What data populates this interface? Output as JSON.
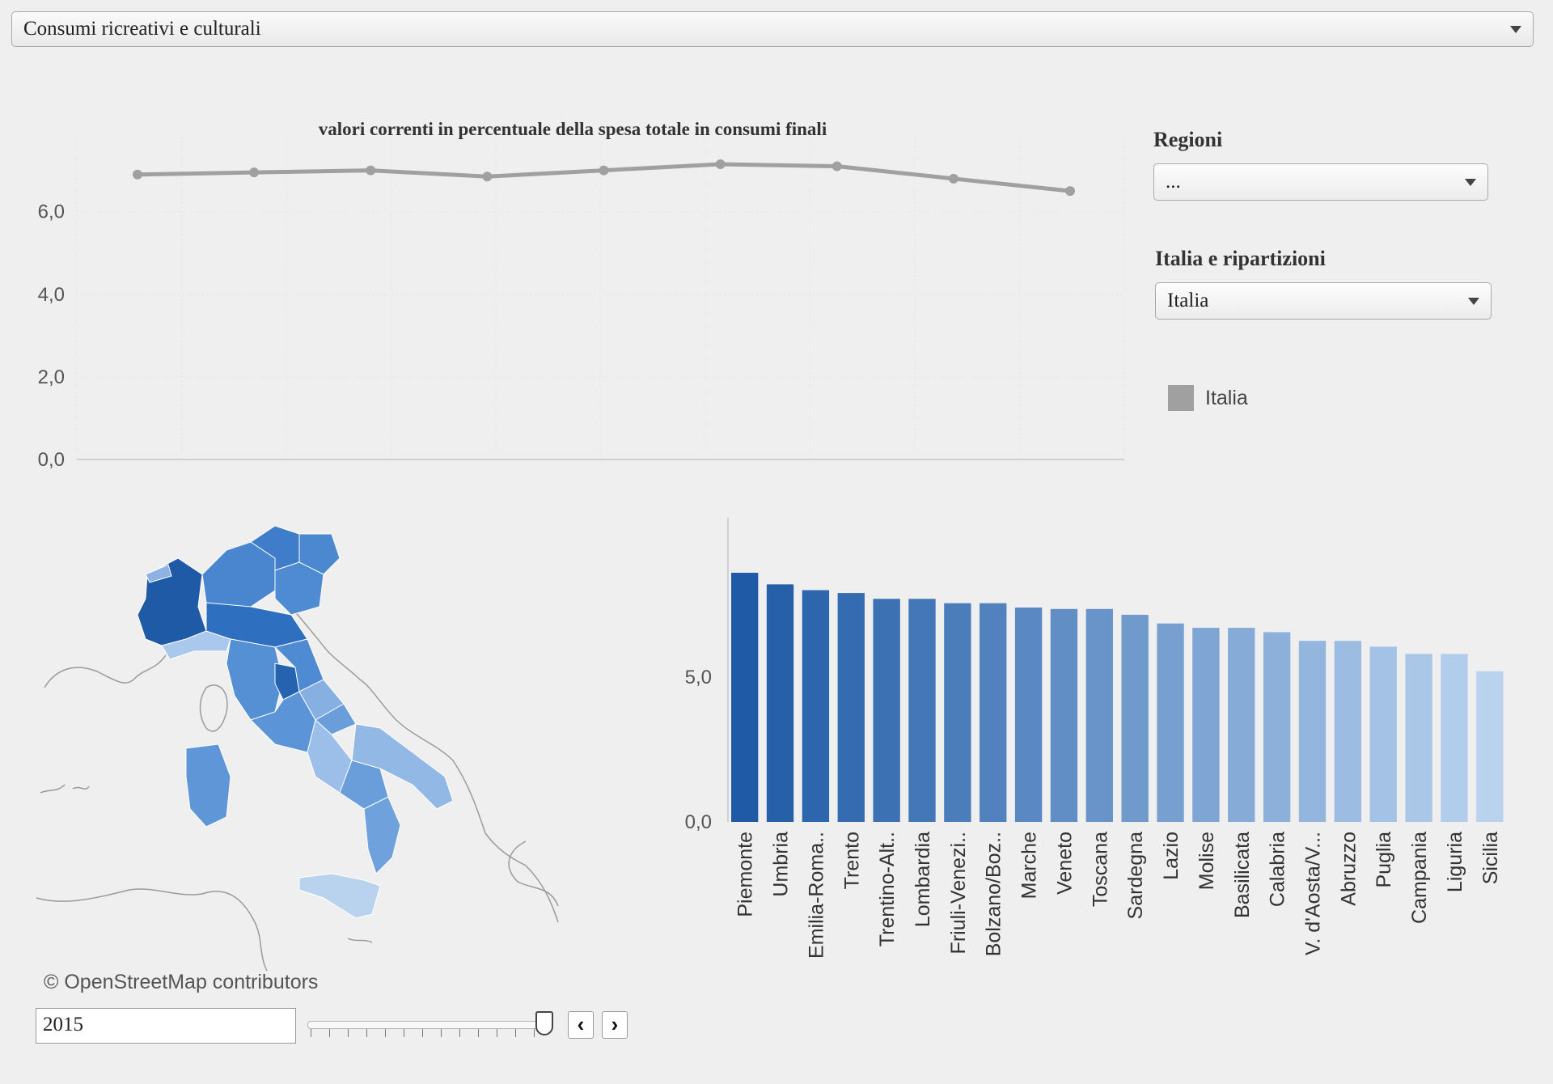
{
  "indicator_select": {
    "value": "Consumi ricreativi e culturali"
  },
  "filters": {
    "regioni": {
      "title": "Regioni",
      "value": "..."
    },
    "ripartizioni": {
      "title": "Italia e ripartizioni",
      "value": "Italia"
    },
    "legend": {
      "name": "Italia",
      "color": "#a0a0a0"
    }
  },
  "map": {
    "attribution": "© OpenStreetMap contributors"
  },
  "year_control": {
    "value": "2015",
    "prev_icon": "chevron-left-icon",
    "next_icon": "chevron-right-icon"
  },
  "colors": {
    "dark_blue": "#1f5aa6",
    "light_blue": "#b9d3ef",
    "line_gray": "#a0a0a0"
  },
  "chart_data": [
    {
      "type": "line",
      "title": "valori correnti in percentuale della spesa totale in consumi finali",
      "xlabel": "",
      "ylabel": "",
      "yticks": [
        "0,0",
        "2,0",
        "4,0",
        "6,0"
      ],
      "ylim": [
        0,
        7.6
      ],
      "grid": true,
      "series": [
        {
          "name": "Italia",
          "values": [
            6.9,
            6.95,
            7.0,
            6.85,
            7.0,
            7.15,
            7.1,
            6.8,
            6.5
          ]
        }
      ]
    },
    {
      "type": "bar",
      "xlabel": "",
      "ylabel": "",
      "yticks": [
        "0,0",
        "5,0"
      ],
      "ylim": [
        0,
        10.5
      ],
      "categories": [
        "Piemonte",
        "Umbria",
        "Emilia-Roma..",
        "Trento",
        "Trentino-Alt..",
        "Lombardia",
        "Friuli-Venezi..",
        "Bolzano/Boz..",
        "Marche",
        "Veneto",
        "Toscana",
        "Sardegna",
        "Lazio",
        "Molise",
        "Basilicata",
        "Calabria",
        "V. d'Aosta/V...",
        "Abruzzo",
        "Puglia",
        "Campania",
        "Liguria",
        "Sicilia"
      ],
      "values": [
        8.6,
        8.2,
        8.0,
        7.9,
        7.7,
        7.7,
        7.55,
        7.55,
        7.4,
        7.35,
        7.35,
        7.15,
        6.85,
        6.7,
        6.7,
        6.55,
        6.25,
        6.25,
        6.05,
        5.8,
        5.8,
        5.2
      ]
    }
  ]
}
